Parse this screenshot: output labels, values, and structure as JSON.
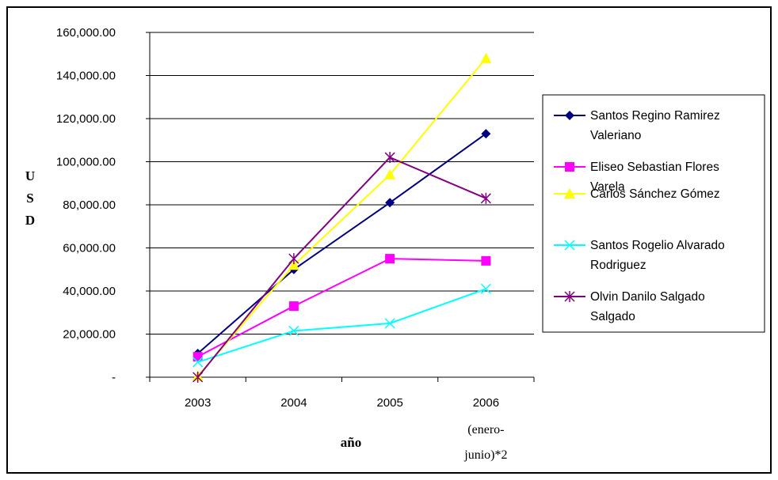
{
  "chart_data": {
    "type": "line",
    "categories": [
      "2003",
      "2004",
      "2005",
      "2006 (enero-junio)*2"
    ],
    "category_labels": [
      [
        "2003"
      ],
      [
        "2004"
      ],
      [
        "2005"
      ],
      [
        "2006",
        "(enero-",
        "junio)*2"
      ]
    ],
    "xlabel": "año",
    "ylabel": "USD",
    "ylim": [
      0,
      160000
    ],
    "yticks": [
      0,
      20000,
      40000,
      60000,
      80000,
      100000,
      120000,
      140000,
      160000
    ],
    "ytick_labels": [
      "-",
      "20,000.00",
      "40,000.00",
      "60,000.00",
      "80,000.00",
      "100,000.00",
      "120,000.00",
      "140,000.00",
      "160,000.00"
    ],
    "grid": "horizontal",
    "legend_position": "right",
    "series": [
      {
        "name": "Santos Regino Ramirez Valeriano",
        "legend_lines": [
          "Santos Regino Ramirez",
          "Valeriano"
        ],
        "color": "#000080",
        "marker": "diamond",
        "values": [
          11000,
          50000,
          81000,
          113000
        ]
      },
      {
        "name": "Eliseo Sebastian Flores Varela",
        "legend_lines": [
          "Eliseo Sebastian Flores",
          "Varela"
        ],
        "color": "#FF00FF",
        "marker": "square",
        "values": [
          9500,
          33000,
          55000,
          54000
        ]
      },
      {
        "name": "Carlos Sánchez Gómez",
        "legend_lines": [
          "Carlos Sánchez Gómez"
        ],
        "color": "#FFFF00",
        "marker": "triangle",
        "values": [
          500,
          52000,
          94000,
          148000
        ]
      },
      {
        "name": "Santos Rogelio Alvarado Rodriguez",
        "legend_lines": [
          "Santos Rogelio Alvarado",
          "Rodriguez"
        ],
        "color": "#00FFFF",
        "marker": "x",
        "values": [
          7000,
          21500,
          25000,
          41000
        ]
      },
      {
        "name": "Olvin Danilo Salgado Salgado",
        "legend_lines": [
          "Olvin Danilo Salgado",
          "Salgado"
        ],
        "color": "#800080",
        "marker": "star",
        "values": [
          0,
          55000,
          102000,
          83000
        ]
      }
    ]
  }
}
